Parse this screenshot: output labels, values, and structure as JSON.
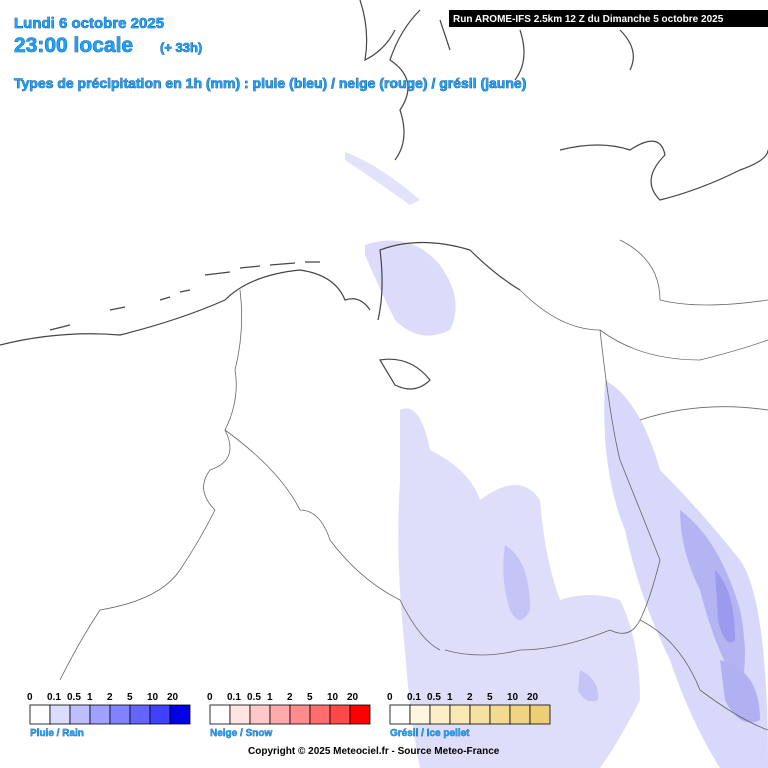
{
  "header": {
    "date": "Lundi 6 octobre 2025",
    "time": "23:00 locale",
    "lead": "(+ 33h)",
    "subtitle": "Types de précipitation en 1h (mm) : pluie (bleu) / neige (rouge) / grésil (jaune)",
    "run": "Run AROME-IFS 2.5km 12 Z du Dimanche 5 octobre 2025"
  },
  "legends": [
    {
      "name": "Pluie / Rain",
      "labels": [
        "0",
        "0.1",
        "0.5",
        "1",
        "2",
        "5",
        "10",
        "20"
      ],
      "colors": [
        "#ffffff",
        "#dcdcff",
        "#bebeff",
        "#a0a0ff",
        "#8282ff",
        "#6464ff",
        "#4040ff",
        "#0000e6"
      ]
    },
    {
      "name": "Neige / Snow",
      "labels": [
        "0",
        "0.1",
        "0.5",
        "1",
        "2",
        "5",
        "10",
        "20"
      ],
      "colors": [
        "#ffffff",
        "#ffe4e4",
        "#ffc8c8",
        "#ffaaaa",
        "#ff8c8c",
        "#ff6e6e",
        "#ff4848",
        "#ff0000"
      ]
    },
    {
      "name": "Grésil / Ice pellet",
      "labels": [
        "0",
        "0.1",
        "0.5",
        "1",
        "2",
        "5",
        "10",
        "20"
      ],
      "colors": [
        "#ffffff",
        "#fff6e0",
        "#fcefc8",
        "#f9e8b4",
        "#f6e1a2",
        "#f3da92",
        "#f0d484",
        "#ecce76"
      ]
    }
  ],
  "footer": {
    "copyright": "Copyright © 2025 Meteociel.fr - Source Meteo-France"
  }
}
